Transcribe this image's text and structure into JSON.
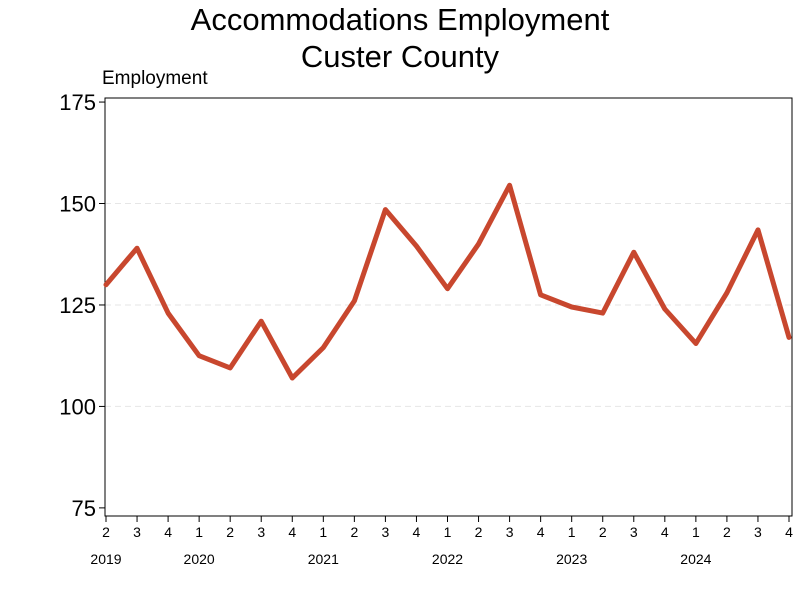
{
  "chart_data": {
    "type": "line",
    "title": [
      "Accommodations Employment",
      "Custer County"
    ],
    "xlabel": "",
    "ylabel": "Employment",
    "ylim": [
      73,
      176
    ],
    "yticks": [
      75,
      100,
      125,
      150,
      175
    ],
    "grid": "horizontal dashed",
    "legend": "none",
    "color": "#C8472E",
    "quarters": [
      "2",
      "3",
      "4",
      "1",
      "2",
      "3",
      "4",
      "1",
      "2",
      "3",
      "4",
      "1",
      "2",
      "3",
      "4",
      "1",
      "2",
      "3",
      "4",
      "1",
      "2",
      "3",
      "4"
    ],
    "years": [
      {
        "label": "2019",
        "at": 0
      },
      {
        "label": "2020",
        "at": 3
      },
      {
        "label": "2021",
        "at": 7
      },
      {
        "label": "2022",
        "at": 11
      },
      {
        "label": "2023",
        "at": 15
      },
      {
        "label": "2024",
        "at": 19
      }
    ],
    "series": [
      {
        "values": [
          130,
          139,
          123,
          112.5,
          109.5,
          121,
          107,
          114.5,
          126,
          148.5,
          139.5,
          129,
          140,
          154.5,
          127.5,
          124.5,
          123,
          138,
          124,
          115.5,
          128,
          143.5,
          117
        ]
      }
    ]
  }
}
